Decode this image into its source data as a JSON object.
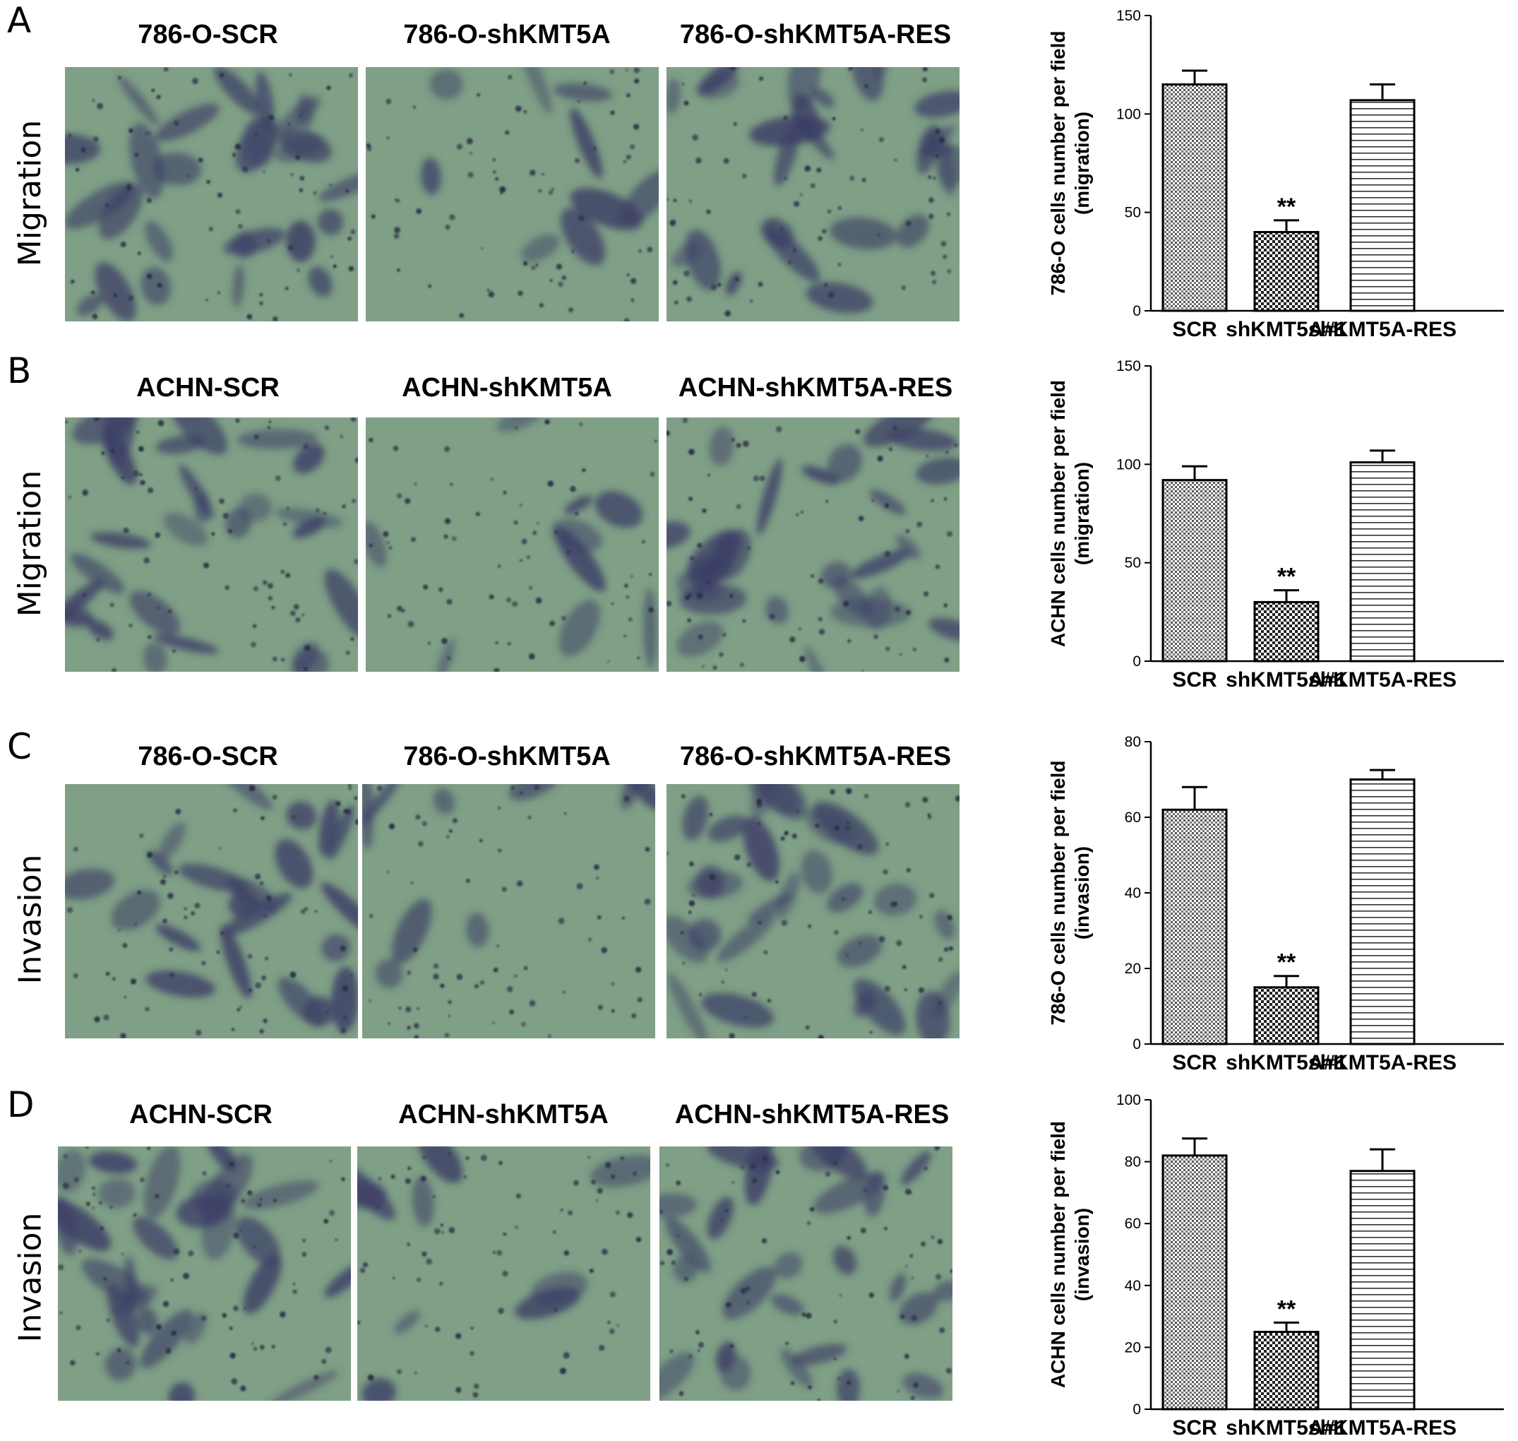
{
  "panels": [
    {
      "letter": "A",
      "row_label": "Migration",
      "titles": [
        "786-O-SCR",
        "786-O-shKMT5A",
        "786-O-shKMT5A-RES"
      ]
    },
    {
      "letter": "B",
      "row_label": "Migration",
      "titles": [
        "ACHN-SCR",
        "ACHN-shKMT5A",
        "ACHN-shKMT5A-RES"
      ]
    },
    {
      "letter": "C",
      "row_label": "Invasion",
      "titles": [
        "786-O-SCR",
        "786-O-shKMT5A",
        "786-O-shKMT5A-RES"
      ]
    },
    {
      "letter": "D",
      "row_label": "Invasion",
      "titles": [
        "ACHN-SCR",
        "ACHN-shKMT5A",
        "ACHN-shKMT5A-RES"
      ]
    }
  ],
  "colors": {
    "micro_bg": "#7f9f86",
    "cell_stain": "#3c3f66",
    "bar_outline": "#000000"
  },
  "chart_data": [
    {
      "type": "bar",
      "ylabel_line1": "786-O cells number per field",
      "ylabel_line2": "(migration)",
      "categories": [
        "SCR",
        "shKMT5A#1",
        "shKMT5A-RES"
      ],
      "values": [
        115,
        40,
        107
      ],
      "errors": [
        7,
        6,
        8
      ],
      "significance": [
        "",
        "**",
        ""
      ],
      "ylim": [
        0,
        150
      ],
      "yticks": [
        0,
        50,
        100,
        150
      ],
      "fill_patterns": [
        "dots",
        "checker",
        "hlines"
      ]
    },
    {
      "type": "bar",
      "ylabel_line1": "ACHN cells number per field",
      "ylabel_line2": "(migration)",
      "categories": [
        "SCR",
        "shKMT5A#1",
        "shKMT5A-RES"
      ],
      "values": [
        92,
        30,
        101
      ],
      "errors": [
        7,
        6,
        6
      ],
      "significance": [
        "",
        "**",
        ""
      ],
      "ylim": [
        0,
        150
      ],
      "yticks": [
        0,
        50,
        100,
        150
      ],
      "fill_patterns": [
        "dots",
        "checker",
        "hlines"
      ]
    },
    {
      "type": "bar",
      "ylabel_line1": "786-O cells number per field",
      "ylabel_line2": "(invasion)",
      "categories": [
        "SCR",
        "shKMT5A#1",
        "shKMT5A-RES"
      ],
      "values": [
        62,
        15,
        70
      ],
      "errors": [
        6,
        3,
        2.5
      ],
      "significance": [
        "",
        "**",
        ""
      ],
      "ylim": [
        0,
        80
      ],
      "yticks": [
        0,
        20,
        40,
        60,
        80
      ],
      "fill_patterns": [
        "dots",
        "checker",
        "hlines"
      ]
    },
    {
      "type": "bar",
      "ylabel_line1": "ACHN cells number per field",
      "ylabel_line2": "(invasion)",
      "categories": [
        "SCR",
        "shKMT5A#1",
        "shKMT5A-RES"
      ],
      "values": [
        82,
        25,
        77
      ],
      "errors": [
        5.5,
        3,
        7
      ],
      "significance": [
        "",
        "**",
        ""
      ],
      "ylim": [
        0,
        100
      ],
      "yticks": [
        0,
        20,
        40,
        60,
        80,
        100
      ],
      "fill_patterns": [
        "dots",
        "checker",
        "hlines"
      ]
    }
  ]
}
